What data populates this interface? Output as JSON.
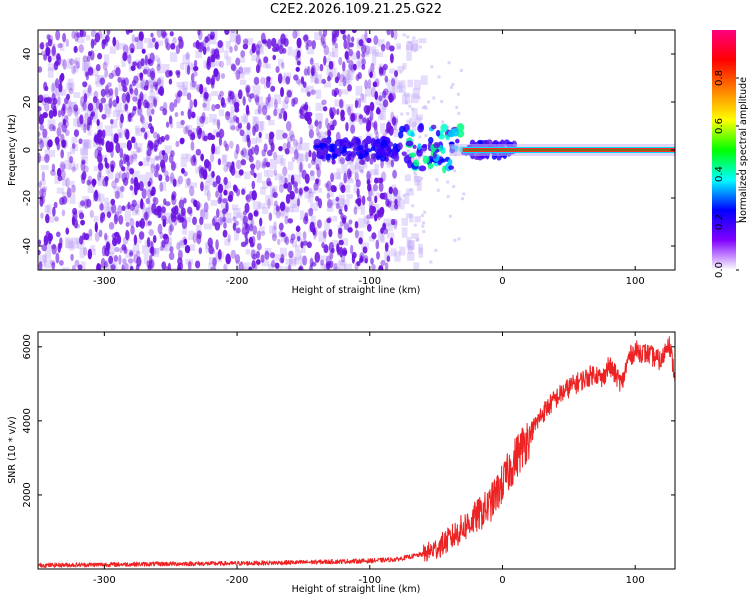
{
  "title": "C2E2.2026.109.21.25.G22",
  "colors": {
    "snr_line": "#ee2222",
    "spectrum_points": "#6a12e0",
    "carrier_line": "#00b000"
  },
  "chart_data": [
    {
      "id": "spectrogram",
      "type": "heatmap",
      "xlabel": "Height of straight line (km)",
      "ylabel": "Frequency (Hz)",
      "xlim": [
        -350,
        130
      ],
      "ylim": [
        -50,
        50
      ],
      "xticks": [
        -300,
        -200,
        -100,
        0,
        100
      ],
      "yticks": [
        -40,
        -20,
        0,
        20,
        40
      ],
      "noise_region_x": [
        -350,
        -80
      ],
      "transition_region_x": [
        -80,
        10
      ],
      "carrier_frequency_hz": 0,
      "carrier_region_x": [
        -30,
        130
      ],
      "colorbar": {
        "label": "Normalized spectral amplitude",
        "range": [
          0.0,
          1.0
        ],
        "ticks": [
          "0.0",
          "0.2",
          "0.4",
          "0.6",
          "0.8"
        ],
        "tick_values": [
          0.0,
          0.2,
          0.4,
          0.6,
          0.8
        ],
        "colormap": [
          "#ffffff",
          "#8000ff",
          "#0000ff",
          "#00ffff",
          "#00ff00",
          "#ffff00",
          "#ff8000",
          "#ff0000",
          "#ff0080"
        ]
      }
    },
    {
      "id": "snr",
      "type": "line",
      "xlabel": "Height of straight line (km)",
      "ylabel": "SNR (10 * v/v)",
      "xlim": [
        -350,
        130
      ],
      "ylim": [
        0,
        6400
      ],
      "xticks": [
        -300,
        -200,
        -100,
        0,
        100
      ],
      "yticks": [
        2000,
        4000,
        6000
      ],
      "series": [
        {
          "name": "SNR",
          "x": [
            -350,
            -300,
            -250,
            -200,
            -150,
            -100,
            -80,
            -60,
            -50,
            -40,
            -30,
            -20,
            -10,
            0,
            10,
            20,
            30,
            40,
            50,
            60,
            70,
            75,
            80,
            90,
            95,
            100,
            110,
            120,
            125,
            130
          ],
          "y": [
            100,
            120,
            140,
            150,
            180,
            220,
            260,
            400,
            550,
            800,
            1100,
            1400,
            1700,
            2300,
            3000,
            3600,
            4200,
            4600,
            4900,
            5100,
            5300,
            5100,
            5500,
            5000,
            5700,
            5900,
            5800,
            5600,
            6200,
            5200
          ]
        }
      ]
    }
  ]
}
